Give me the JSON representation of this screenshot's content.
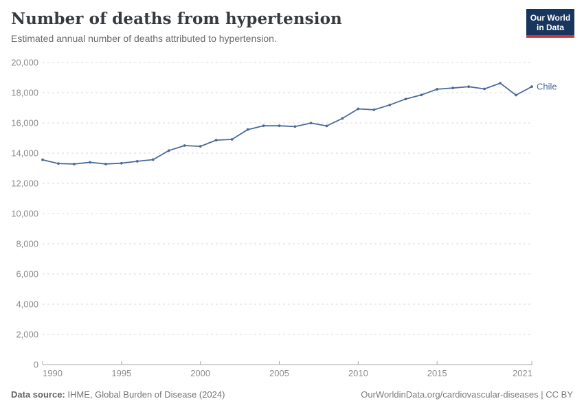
{
  "header": {
    "title": "Number of deaths from hypertension",
    "subtitle": "Estimated annual number of deaths attributed to hypertension.",
    "logo": {
      "line1": "Our World",
      "line2": "in Data"
    }
  },
  "chart_data": {
    "type": "line",
    "title": "Number of deaths from hypertension",
    "xlabel": "",
    "ylabel": "",
    "ylim": [
      0,
      20000
    ],
    "ytick_step": 2000,
    "xticks": [
      1990,
      1995,
      2000,
      2005,
      2010,
      2015,
      2021
    ],
    "grid": "horizontal-dashed",
    "legend_position": "end-of-line-label",
    "x": [
      1990,
      1991,
      1992,
      1993,
      1994,
      1995,
      1996,
      1997,
      1998,
      1999,
      2000,
      2001,
      2002,
      2003,
      2004,
      2005,
      2006,
      2007,
      2008,
      2009,
      2010,
      2011,
      2012,
      2013,
      2014,
      2015,
      2016,
      2017,
      2018,
      2019,
      2020,
      2021
    ],
    "series": [
      {
        "name": "Chile",
        "color": "#4C6A9C",
        "values": [
          13560,
          13310,
          13280,
          13390,
          13280,
          13330,
          13460,
          13570,
          14170,
          14500,
          14450,
          14860,
          14910,
          15560,
          15810,
          15810,
          15760,
          15990,
          15800,
          16300,
          16930,
          16870,
          17190,
          17580,
          17850,
          18230,
          18310,
          18400,
          18250,
          18630,
          17840,
          18400
        ]
      }
    ]
  },
  "footer": {
    "source_label": "Data source:",
    "source_value": " IHME, Global Burden of Disease (2024)",
    "credit": "OurWorldinData.org/cardiovascular-diseases | CC BY"
  },
  "colors": {
    "accent_line": "#4C6A9C",
    "logo_bg": "#18365d",
    "logo_bar": "#d0343a",
    "grid": "#dadada",
    "axis": "#a8a8a8",
    "tick_label": "#8c8c8c"
  }
}
